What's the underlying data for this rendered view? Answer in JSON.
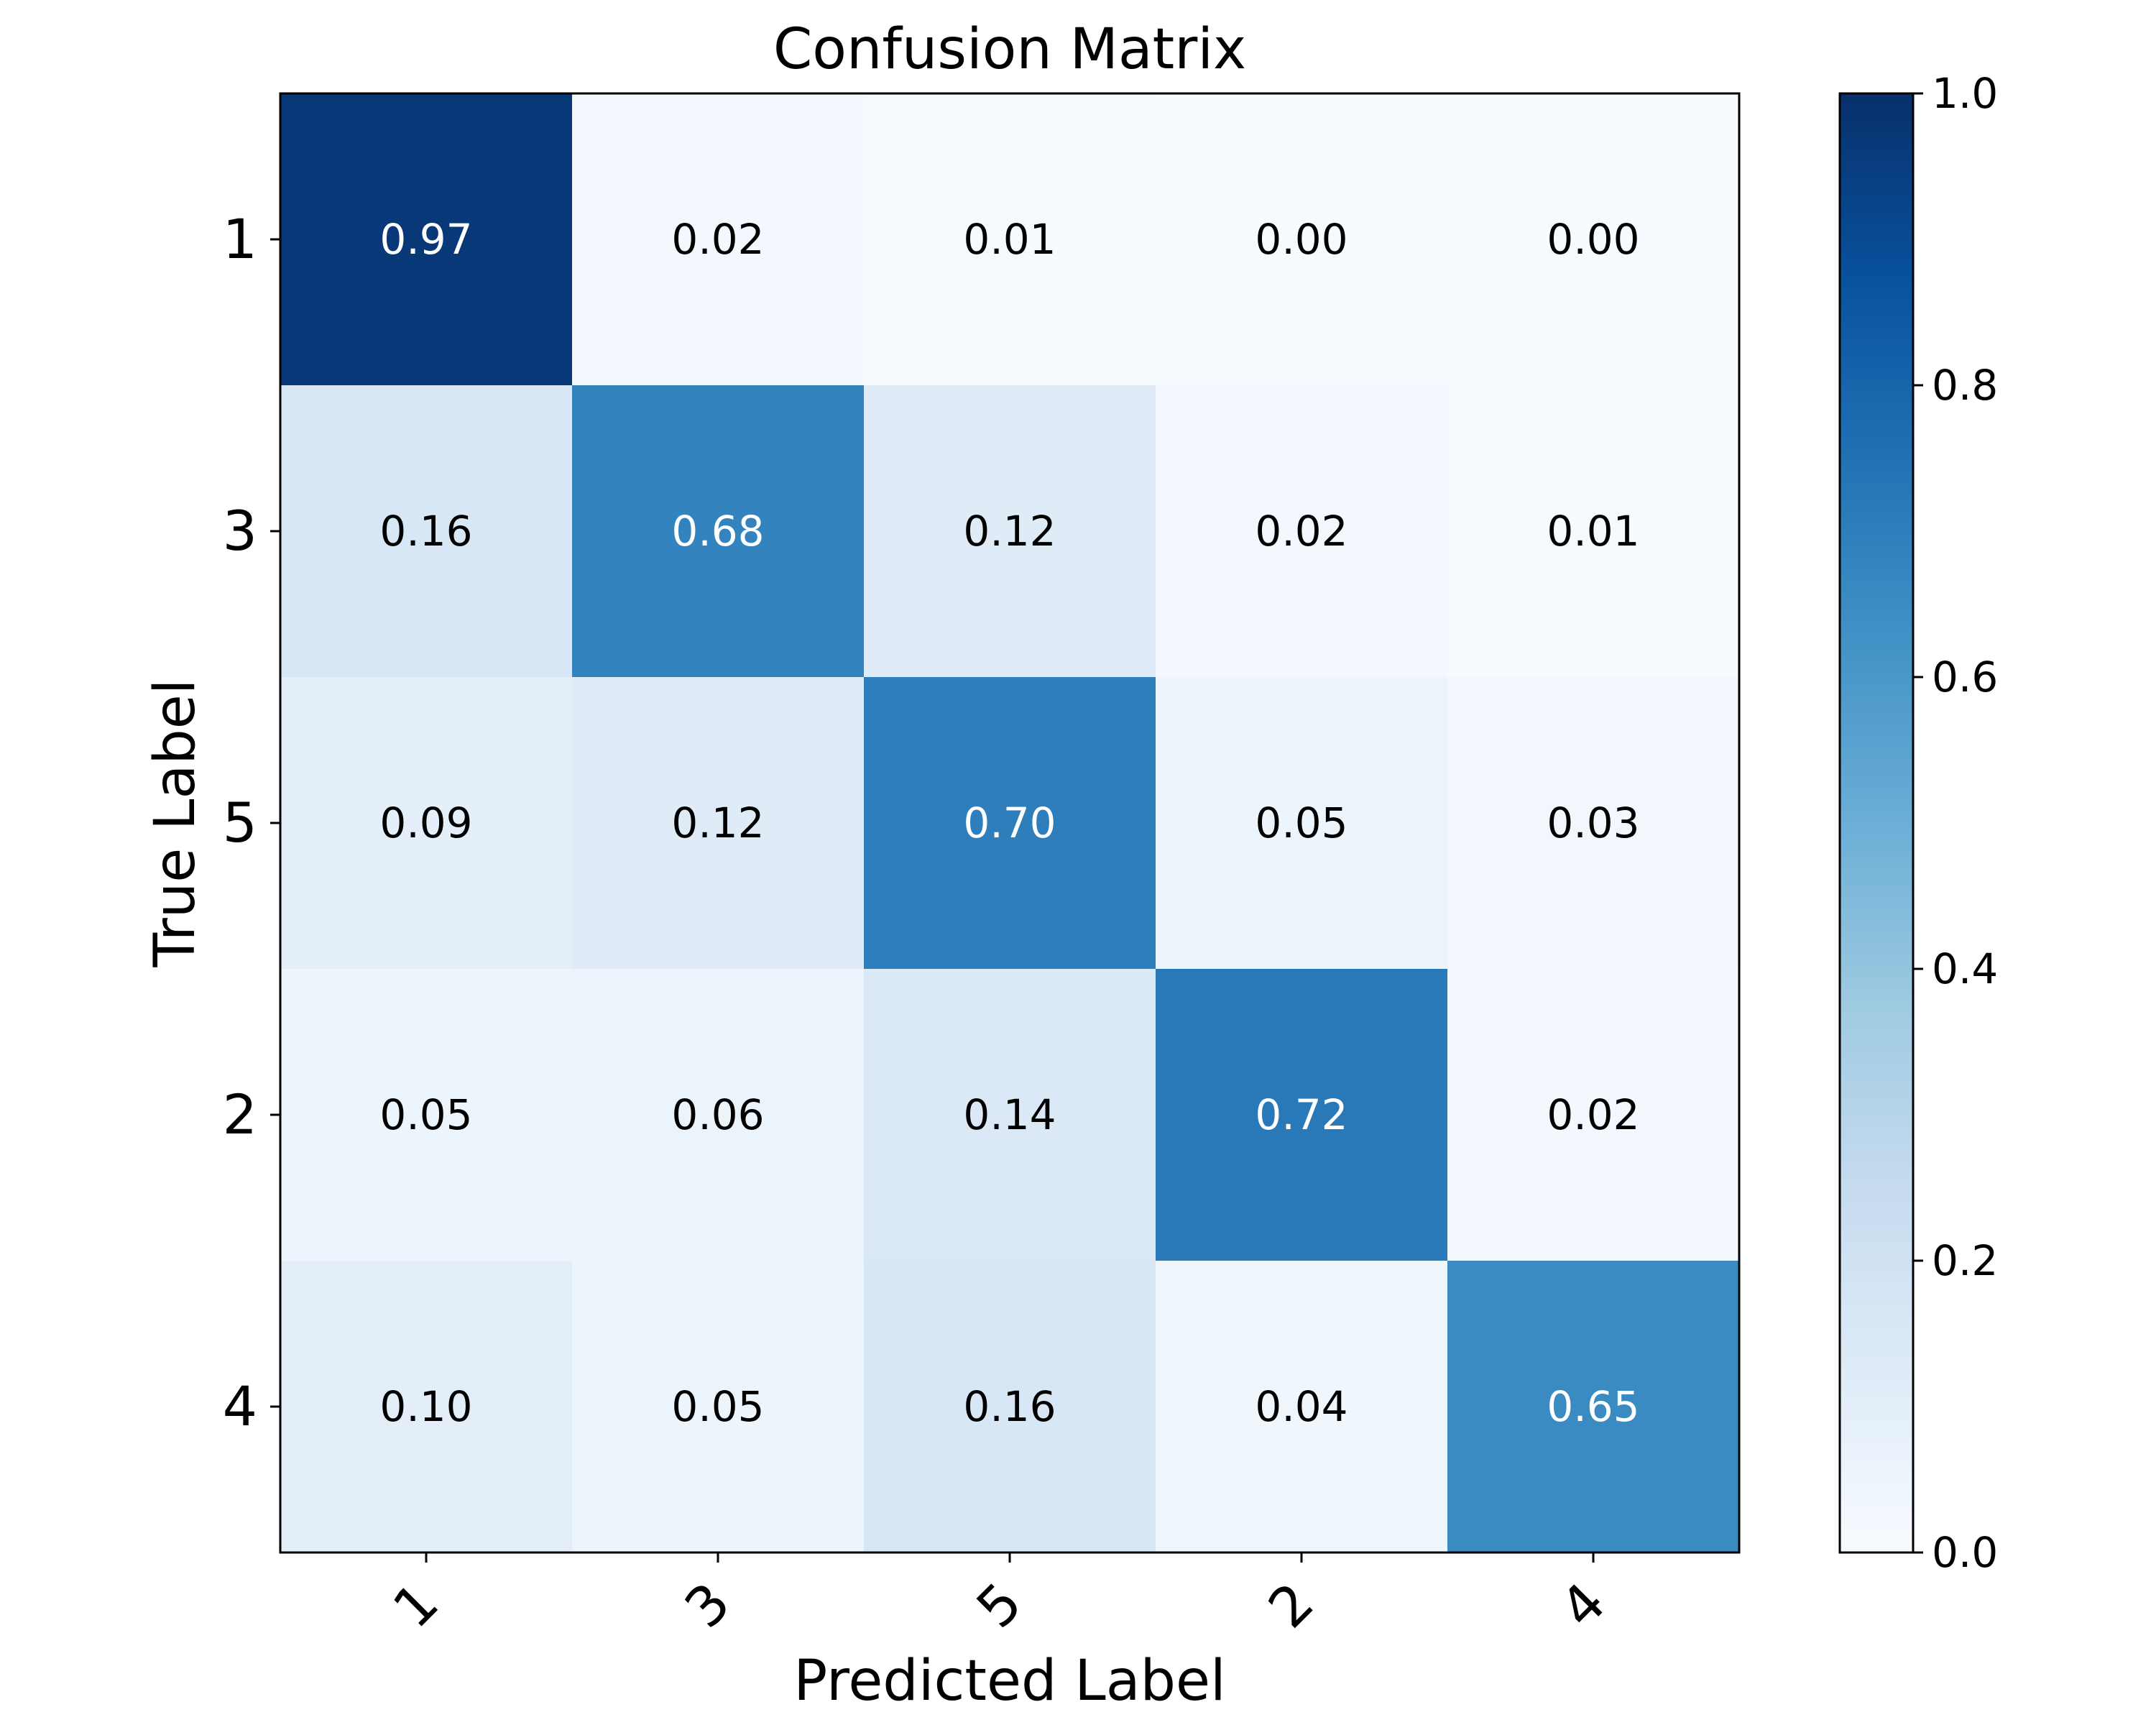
{
  "chart_data": {
    "type": "heatmap",
    "title": "Confusion Matrix",
    "xlabel": "Predicted Label",
    "ylabel": "True Label",
    "x_categories": [
      "1",
      "3",
      "5",
      "2",
      "4"
    ],
    "y_categories": [
      "1",
      "3",
      "5",
      "2",
      "4"
    ],
    "values": [
      [
        0.97,
        0.02,
        0.01,
        0.0,
        0.0
      ],
      [
        0.16,
        0.68,
        0.12,
        0.02,
        0.01
      ],
      [
        0.09,
        0.12,
        0.7,
        0.05,
        0.03
      ],
      [
        0.05,
        0.06,
        0.14,
        0.72,
        0.02
      ],
      [
        0.1,
        0.05,
        0.16,
        0.04,
        0.65
      ]
    ],
    "value_format": "0.00",
    "colormap": "Blues",
    "colorbar": {
      "range": [
        0.0,
        1.0
      ],
      "ticks": [
        "0.0",
        "0.2",
        "0.4",
        "0.6",
        "0.8",
        "1.0"
      ]
    },
    "x_tick_rotation": "45°",
    "grid": false
  }
}
